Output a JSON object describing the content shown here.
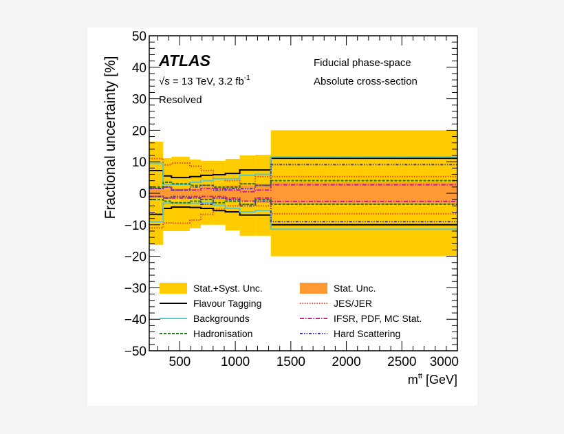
{
  "chart_data": {
    "type": "area",
    "title": "",
    "xlabel": "m",
    "xlabel_sup": "tt",
    "xlabel_unit": " [GeV]",
    "ylabel": "Fractional uncertainty [%]",
    "xlim": [
      225,
      3000
    ],
    "ylim": [
      -50,
      50
    ],
    "xticks": [
      500,
      1000,
      1500,
      2000,
      2500,
      3000
    ],
    "yticks": [
      -50,
      -40,
      -30,
      -20,
      -10,
      0,
      10,
      20,
      30,
      40,
      50
    ],
    "grid": false,
    "annotations": {
      "experiment": "ATLAS",
      "energy": "√s = 13 TeV, 3.2 fb",
      "energy_sup": "-1",
      "channel": "Resolved",
      "phase_space": "Fiducial phase-space",
      "observable": "Absolute cross-section"
    },
    "legend_placement": "bottom",
    "bin_edges": [
      225,
      350,
      425,
      590,
      690,
      800,
      910,
      1040,
      1180,
      1320,
      3000
    ],
    "series": [
      {
        "name": "Stat.+Syst. Unc.",
        "kind": "band",
        "color": "#ffcc00",
        "up": [
          16.4,
          11.1,
          11.6,
          10.7,
          10.3,
          10.3,
          10.9,
          12.0,
          12.2,
          20.0
        ],
        "down": [
          -16.4,
          -12.0,
          -12.0,
          -11.1,
          -10.0,
          -10.0,
          -11.8,
          -13.5,
          -13.5,
          -20.0
        ]
      },
      {
        "name": "Stat. Unc.",
        "kind": "band",
        "color": "#ff9933",
        "up": [
          1.5,
          1.5,
          1.5,
          1.5,
          2.0,
          2.0,
          2.5,
          2.5,
          3.0,
          3.5
        ],
        "down": [
          -1.5,
          -1.5,
          -1.5,
          -1.5,
          -2.0,
          -2.0,
          -2.5,
          -2.5,
          -3.0,
          -3.5
        ]
      },
      {
        "name": "Flavour Tagging",
        "kind": "line",
        "color": "#000000",
        "dash": "",
        "up": [
          7.2,
          5.5,
          5.0,
          5.3,
          5.7,
          5.9,
          6.3,
          7.4,
          7.4,
          11.1
        ],
        "down": [
          -6.7,
          -4.8,
          -4.4,
          -4.5,
          -4.8,
          -5.5,
          -5.9,
          -6.9,
          -6.9,
          -10.0
        ]
      },
      {
        "name": "JES/JER",
        "kind": "line",
        "color": "#e8412c",
        "dash": "1.5,2",
        "up": [
          11.0,
          9.0,
          9.6,
          8.6,
          7.2,
          4.6,
          4.0,
          3.0,
          5.3,
          5.3
        ],
        "down": [
          -11.0,
          -9.4,
          -9.5,
          -8.5,
          -6.7,
          -5.0,
          -4.0,
          -3.5,
          -4.0,
          -6.5
        ]
      },
      {
        "name": "Backgrounds",
        "kind": "line",
        "color": "#5cc8c8",
        "dash": "",
        "up": [
          9.5,
          2.8,
          2.8,
          3.5,
          4.0,
          4.6,
          4.6,
          5.7,
          6.0,
          11.5
        ],
        "down": [
          -9.0,
          -3.1,
          -3.1,
          -3.2,
          -3.0,
          -3.8,
          -4.8,
          -5.9,
          -5.5,
          -11.4
        ]
      },
      {
        "name": "IFSR, PDF, MC Stat.",
        "kind": "line",
        "color": "#c0208a",
        "dash": "6,2,1.5,2",
        "up": [
          1.5,
          2.0,
          1.0,
          1.0,
          1.5,
          1.5,
          1.0,
          0.5,
          1.0,
          2.7
        ],
        "down": [
          -1.0,
          -1.5,
          -1.5,
          -1.0,
          -1.0,
          -1.0,
          -1.5,
          -2.5,
          -1.5,
          -2.6
        ]
      },
      {
        "name": "Hadronisation",
        "kind": "line",
        "color": "#1f7a1f",
        "dash": "4,2",
        "up": [
          2.0,
          3.5,
          3.0,
          2.5,
          2.5,
          2.0,
          2.0,
          3.0,
          2.5,
          4.0
        ],
        "down": [
          -2.0,
          -2.5,
          -3.0,
          -2.5,
          -2.0,
          -3.0,
          -2.5,
          -3.5,
          -2.0,
          -3.5
        ]
      },
      {
        "name": "Hard Scattering",
        "kind": "line",
        "color": "#3b3bb0",
        "dash": "4,2,1.5,2,1.5,2",
        "up": [
          1.5,
          2.0,
          1.0,
          2.0,
          2.5,
          1.0,
          1.5,
          1.5,
          2.5,
          9.1
        ],
        "down": [
          -1.0,
          -1.5,
          -1.0,
          -1.5,
          -3.5,
          -1.5,
          -2.0,
          -4.0,
          -2.5,
          -9.0
        ]
      }
    ],
    "legend_order": [
      [
        "Stat.+Syst. Unc.",
        "Stat. Unc."
      ],
      [
        "Flavour Tagging",
        "JES/JER"
      ],
      [
        "Backgrounds",
        "IFSR, PDF, MC Stat."
      ],
      [
        "Hadronisation",
        "Hard Scattering"
      ]
    ]
  }
}
